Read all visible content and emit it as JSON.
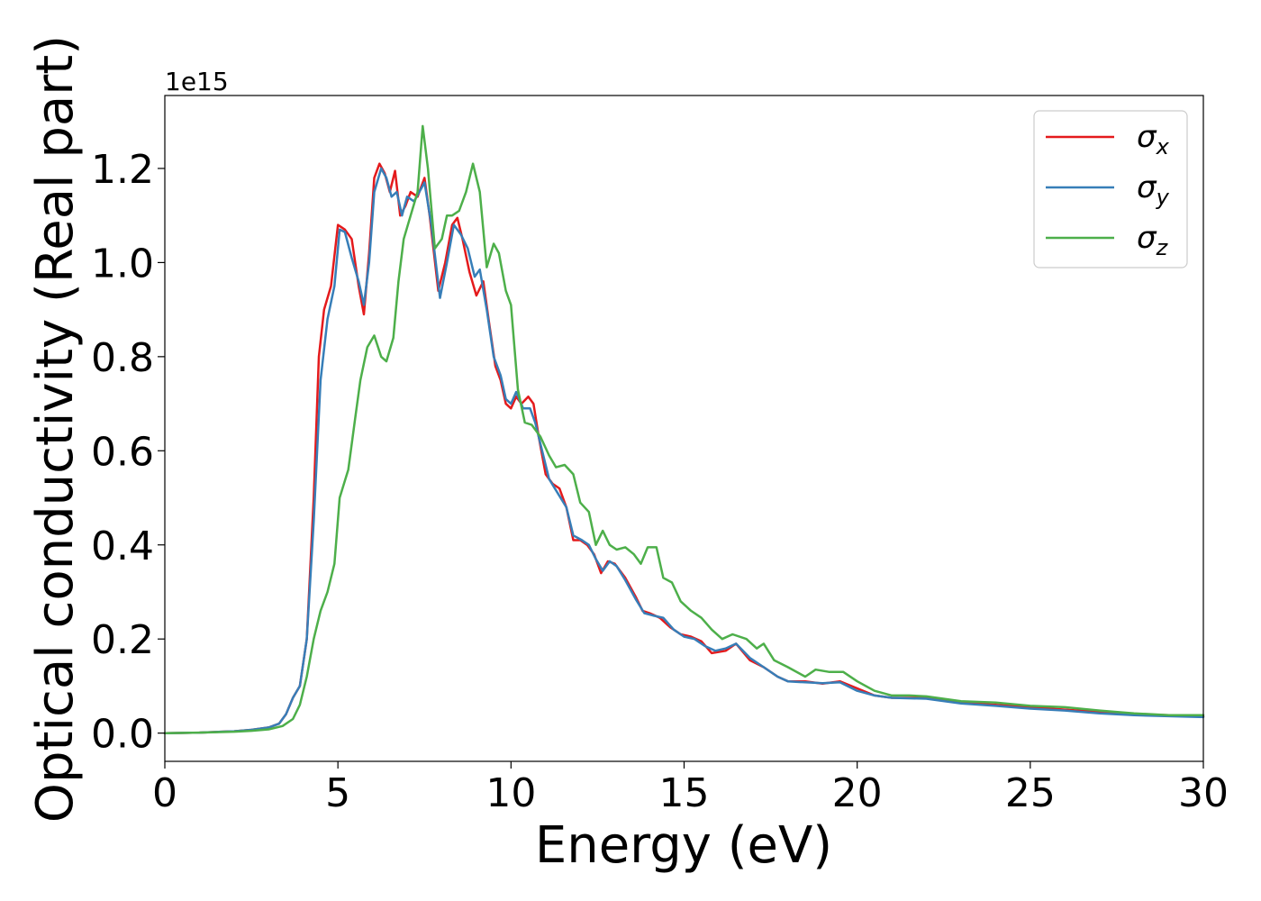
{
  "chart_data": {
    "type": "line",
    "xlabel": "Energy (eV)",
    "ylabel": "Optical conductivity (Real part)",
    "y_offset_label": "1e15",
    "xlim": [
      0,
      30
    ],
    "ylim": [
      -0.06,
      1.355
    ],
    "x_ticks": [
      0,
      5,
      10,
      15,
      20,
      25,
      30
    ],
    "x_tick_labels": [
      "0",
      "5",
      "10",
      "15",
      "20",
      "25",
      "30"
    ],
    "y_ticks": [
      0.0,
      0.2,
      0.4,
      0.6,
      0.8,
      1.0,
      1.2
    ],
    "y_tick_labels": [
      "0.0",
      "0.2",
      "0.4",
      "0.6",
      "0.8",
      "1.0",
      "1.2"
    ],
    "grid": false,
    "legend_position": "top-right",
    "series": [
      {
        "name": "x",
        "color": "#e41a1c",
        "points": [
          [
            0,
            0
          ],
          [
            1,
            0.001
          ],
          [
            2,
            0.004
          ],
          [
            2.5,
            0.007
          ],
          [
            3,
            0.012
          ],
          [
            3.3,
            0.02
          ],
          [
            3.5,
            0.04
          ],
          [
            3.7,
            0.075
          ],
          [
            3.9,
            0.1
          ],
          [
            4.1,
            0.2
          ],
          [
            4.3,
            0.5
          ],
          [
            4.45,
            0.8
          ],
          [
            4.6,
            0.9
          ],
          [
            4.8,
            0.95
          ],
          [
            5.0,
            1.08
          ],
          [
            5.2,
            1.07
          ],
          [
            5.4,
            1.05
          ],
          [
            5.6,
            0.95
          ],
          [
            5.75,
            0.89
          ],
          [
            5.9,
            1.02
          ],
          [
            6.05,
            1.18
          ],
          [
            6.2,
            1.21
          ],
          [
            6.35,
            1.19
          ],
          [
            6.5,
            1.15
          ],
          [
            6.65,
            1.195
          ],
          [
            6.8,
            1.1
          ],
          [
            6.95,
            1.12
          ],
          [
            7.1,
            1.15
          ],
          [
            7.3,
            1.14
          ],
          [
            7.5,
            1.18
          ],
          [
            7.65,
            1.1
          ],
          [
            7.9,
            0.94
          ],
          [
            8.1,
            1.0
          ],
          [
            8.3,
            1.08
          ],
          [
            8.45,
            1.095
          ],
          [
            8.6,
            1.05
          ],
          [
            8.8,
            0.98
          ],
          [
            9.0,
            0.93
          ],
          [
            9.2,
            0.96
          ],
          [
            9.35,
            0.88
          ],
          [
            9.55,
            0.78
          ],
          [
            9.7,
            0.75
          ],
          [
            9.85,
            0.7
          ],
          [
            10.0,
            0.69
          ],
          [
            10.15,
            0.715
          ],
          [
            10.3,
            0.7
          ],
          [
            10.5,
            0.715
          ],
          [
            10.65,
            0.7
          ],
          [
            10.8,
            0.63
          ],
          [
            11.0,
            0.55
          ],
          [
            11.2,
            0.53
          ],
          [
            11.4,
            0.52
          ],
          [
            11.6,
            0.48
          ],
          [
            11.8,
            0.41
          ],
          [
            12.0,
            0.41
          ],
          [
            12.2,
            0.4
          ],
          [
            12.4,
            0.38
          ],
          [
            12.6,
            0.34
          ],
          [
            12.8,
            0.365
          ],
          [
            13.0,
            0.36
          ],
          [
            13.3,
            0.33
          ],
          [
            13.6,
            0.29
          ],
          [
            13.8,
            0.26
          ],
          [
            14.0,
            0.255
          ],
          [
            14.3,
            0.245
          ],
          [
            14.6,
            0.225
          ],
          [
            14.9,
            0.21
          ],
          [
            15.2,
            0.205
          ],
          [
            15.5,
            0.195
          ],
          [
            15.8,
            0.17
          ],
          [
            16.2,
            0.175
          ],
          [
            16.5,
            0.19
          ],
          [
            16.9,
            0.155
          ],
          [
            17.3,
            0.14
          ],
          [
            17.7,
            0.12
          ],
          [
            18.0,
            0.11
          ],
          [
            18.5,
            0.11
          ],
          [
            19.0,
            0.105
          ],
          [
            19.5,
            0.11
          ],
          [
            20.0,
            0.095
          ],
          [
            20.5,
            0.08
          ],
          [
            21.0,
            0.075
          ],
          [
            22.0,
            0.075
          ],
          [
            23.0,
            0.065
          ],
          [
            24.0,
            0.06
          ],
          [
            25.0,
            0.055
          ],
          [
            26.0,
            0.05
          ],
          [
            27.0,
            0.045
          ],
          [
            28.0,
            0.04
          ],
          [
            29.0,
            0.038
          ],
          [
            30.0,
            0.035
          ]
        ]
      },
      {
        "name": "y",
        "color": "#377eb8",
        "points": [
          [
            0,
            0
          ],
          [
            1,
            0.001
          ],
          [
            2,
            0.004
          ],
          [
            2.5,
            0.007
          ],
          [
            3,
            0.012
          ],
          [
            3.3,
            0.02
          ],
          [
            3.5,
            0.04
          ],
          [
            3.7,
            0.075
          ],
          [
            3.9,
            0.1
          ],
          [
            4.1,
            0.2
          ],
          [
            4.3,
            0.45
          ],
          [
            4.5,
            0.75
          ],
          [
            4.7,
            0.88
          ],
          [
            4.9,
            0.95
          ],
          [
            5.05,
            1.07
          ],
          [
            5.2,
            1.065
          ],
          [
            5.4,
            1.01
          ],
          [
            5.6,
            0.96
          ],
          [
            5.75,
            0.91
          ],
          [
            5.9,
            1.0
          ],
          [
            6.05,
            1.15
          ],
          [
            6.25,
            1.2
          ],
          [
            6.4,
            1.18
          ],
          [
            6.55,
            1.14
          ],
          [
            6.7,
            1.15
          ],
          [
            6.85,
            1.1
          ],
          [
            7.0,
            1.14
          ],
          [
            7.2,
            1.13
          ],
          [
            7.5,
            1.17
          ],
          [
            7.7,
            1.08
          ],
          [
            7.95,
            0.925
          ],
          [
            8.15,
            1.0
          ],
          [
            8.35,
            1.08
          ],
          [
            8.55,
            1.06
          ],
          [
            8.75,
            1.03
          ],
          [
            8.95,
            0.97
          ],
          [
            9.1,
            0.985
          ],
          [
            9.3,
            0.9
          ],
          [
            9.5,
            0.8
          ],
          [
            9.7,
            0.76
          ],
          [
            9.85,
            0.71
          ],
          [
            10.0,
            0.7
          ],
          [
            10.15,
            0.725
          ],
          [
            10.35,
            0.69
          ],
          [
            10.55,
            0.69
          ],
          [
            10.7,
            0.66
          ],
          [
            10.9,
            0.6
          ],
          [
            11.1,
            0.54
          ],
          [
            11.35,
            0.51
          ],
          [
            11.6,
            0.48
          ],
          [
            11.8,
            0.42
          ],
          [
            12.05,
            0.41
          ],
          [
            12.25,
            0.4
          ],
          [
            12.45,
            0.37
          ],
          [
            12.65,
            0.345
          ],
          [
            12.85,
            0.365
          ],
          [
            13.05,
            0.355
          ],
          [
            13.3,
            0.325
          ],
          [
            13.6,
            0.285
          ],
          [
            13.85,
            0.255
          ],
          [
            14.1,
            0.25
          ],
          [
            14.4,
            0.245
          ],
          [
            14.7,
            0.22
          ],
          [
            15.0,
            0.205
          ],
          [
            15.3,
            0.2
          ],
          [
            15.6,
            0.185
          ],
          [
            15.9,
            0.175
          ],
          [
            16.2,
            0.18
          ],
          [
            16.5,
            0.19
          ],
          [
            16.9,
            0.16
          ],
          [
            17.3,
            0.14
          ],
          [
            17.7,
            0.12
          ],
          [
            18.0,
            0.11
          ],
          [
            18.5,
            0.108
          ],
          [
            19.0,
            0.106
          ],
          [
            19.5,
            0.108
          ],
          [
            20.0,
            0.09
          ],
          [
            20.5,
            0.08
          ],
          [
            21.0,
            0.075
          ],
          [
            22.0,
            0.073
          ],
          [
            23.0,
            0.063
          ],
          [
            24.0,
            0.058
          ],
          [
            25.0,
            0.052
          ],
          [
            26.0,
            0.048
          ],
          [
            27.0,
            0.042
          ],
          [
            28.0,
            0.038
          ],
          [
            29.0,
            0.036
          ],
          [
            30.0,
            0.034
          ]
        ]
      },
      {
        "name": "z",
        "color": "#4daf4a",
        "points": [
          [
            0,
            0
          ],
          [
            1,
            0.001
          ],
          [
            2,
            0.003
          ],
          [
            2.5,
            0.005
          ],
          [
            3,
            0.008
          ],
          [
            3.4,
            0.015
          ],
          [
            3.7,
            0.03
          ],
          [
            3.9,
            0.06
          ],
          [
            4.1,
            0.12
          ],
          [
            4.3,
            0.2
          ],
          [
            4.5,
            0.26
          ],
          [
            4.7,
            0.3
          ],
          [
            4.9,
            0.36
          ],
          [
            5.05,
            0.5
          ],
          [
            5.3,
            0.56
          ],
          [
            5.5,
            0.67
          ],
          [
            5.65,
            0.75
          ],
          [
            5.85,
            0.82
          ],
          [
            6.05,
            0.845
          ],
          [
            6.25,
            0.8
          ],
          [
            6.4,
            0.79
          ],
          [
            6.6,
            0.84
          ],
          [
            6.75,
            0.96
          ],
          [
            6.9,
            1.05
          ],
          [
            7.1,
            1.1
          ],
          [
            7.3,
            1.15
          ],
          [
            7.45,
            1.29
          ],
          [
            7.6,
            1.2
          ],
          [
            7.8,
            1.03
          ],
          [
            8.0,
            1.05
          ],
          [
            8.15,
            1.1
          ],
          [
            8.3,
            1.1
          ],
          [
            8.5,
            1.11
          ],
          [
            8.7,
            1.15
          ],
          [
            8.9,
            1.21
          ],
          [
            9.1,
            1.15
          ],
          [
            9.3,
            0.99
          ],
          [
            9.5,
            1.04
          ],
          [
            9.65,
            1.02
          ],
          [
            9.85,
            0.94
          ],
          [
            10.0,
            0.91
          ],
          [
            10.2,
            0.73
          ],
          [
            10.4,
            0.66
          ],
          [
            10.6,
            0.655
          ],
          [
            10.85,
            0.63
          ],
          [
            11.1,
            0.59
          ],
          [
            11.3,
            0.565
          ],
          [
            11.55,
            0.57
          ],
          [
            11.8,
            0.55
          ],
          [
            12.0,
            0.49
          ],
          [
            12.25,
            0.47
          ],
          [
            12.45,
            0.4
          ],
          [
            12.65,
            0.43
          ],
          [
            12.85,
            0.4
          ],
          [
            13.05,
            0.39
          ],
          [
            13.3,
            0.395
          ],
          [
            13.55,
            0.38
          ],
          [
            13.75,
            0.36
          ],
          [
            13.95,
            0.395
          ],
          [
            14.2,
            0.395
          ],
          [
            14.4,
            0.33
          ],
          [
            14.65,
            0.32
          ],
          [
            14.9,
            0.28
          ],
          [
            15.2,
            0.26
          ],
          [
            15.5,
            0.245
          ],
          [
            15.8,
            0.22
          ],
          [
            16.1,
            0.2
          ],
          [
            16.4,
            0.21
          ],
          [
            16.8,
            0.2
          ],
          [
            17.1,
            0.18
          ],
          [
            17.3,
            0.19
          ],
          [
            17.6,
            0.155
          ],
          [
            18.0,
            0.14
          ],
          [
            18.5,
            0.12
          ],
          [
            18.8,
            0.135
          ],
          [
            19.2,
            0.13
          ],
          [
            19.6,
            0.13
          ],
          [
            20.0,
            0.11
          ],
          [
            20.5,
            0.09
          ],
          [
            21.0,
            0.08
          ],
          [
            21.5,
            0.08
          ],
          [
            22.0,
            0.078
          ],
          [
            23.0,
            0.068
          ],
          [
            24.0,
            0.065
          ],
          [
            25.0,
            0.058
          ],
          [
            26.0,
            0.055
          ],
          [
            27.0,
            0.048
          ],
          [
            28.0,
            0.042
          ],
          [
            29.0,
            0.038
          ],
          [
            30.0,
            0.038
          ]
        ]
      }
    ]
  }
}
